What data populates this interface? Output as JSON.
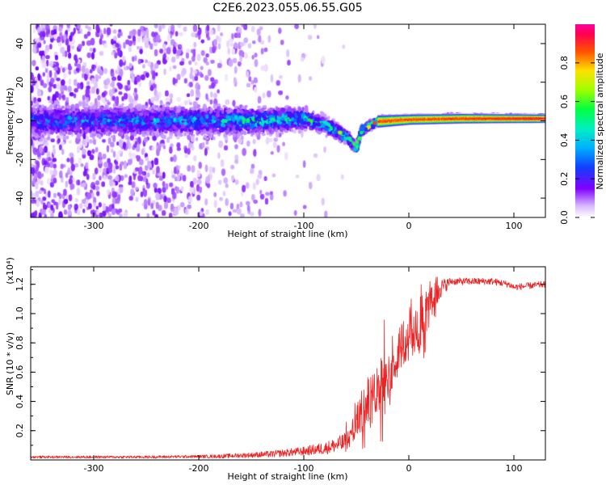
{
  "title": "C2E6.2023.055.06.55.G05",
  "colors": {
    "trace": "#ee2222",
    "background": "#ffffff",
    "colormap": [
      "#ffffff",
      "#ecdcfb",
      "#c9a0ff",
      "#9b40ff",
      "#6a00ff",
      "#2020ff",
      "#00a0ff",
      "#00e8d0",
      "#00ff40",
      "#a0ff00",
      "#ffe000",
      "#ff6000",
      "#ff0040",
      "#ff00a0"
    ]
  },
  "chart_data": [
    {
      "type": "heatmap",
      "name": "spectrogram",
      "xlabel": "Height of straight line (km)",
      "ylabel": "Frequency (Hz)",
      "xlim": [
        -360,
        130
      ],
      "ylim": [
        -50,
        50
      ],
      "x_ticks": [
        -300,
        -200,
        -100,
        0,
        100
      ],
      "x_tick_labels": [
        "-300",
        "-200",
        "-100",
        "0",
        "100"
      ],
      "y_ticks": [
        -40,
        -20,
        0,
        20,
        40
      ],
      "y_tick_labels": [
        "-40",
        "-20",
        "0",
        "20",
        "40"
      ],
      "colorbar": {
        "label": "Normalized spectral amplitude",
        "range": [
          0,
          1
        ],
        "ticks": [
          0.0,
          0.2,
          0.4,
          0.6,
          0.8
        ],
        "tick_labels": [
          "0.0",
          "0.2",
          "0.4",
          "0.6",
          "0.8"
        ]
      },
      "ridge_center": [
        {
          "x": -360,
          "f": 0
        },
        {
          "x": -150,
          "f": 0
        },
        {
          "x": -100,
          "f": 1
        },
        {
          "x": -80,
          "f": -2
        },
        {
          "x": -60,
          "f": -8
        },
        {
          "x": -50,
          "f": -14
        },
        {
          "x": -45,
          "f": -5
        },
        {
          "x": -30,
          "f": 0
        },
        {
          "x": 0,
          "f": 1
        },
        {
          "x": 50,
          "f": 1.5
        },
        {
          "x": 130,
          "f": 1.5
        }
      ],
      "ridge_halfwidth": [
        {
          "x": -360,
          "w": 7
        },
        {
          "x": -150,
          "w": 6
        },
        {
          "x": -100,
          "w": 4.5
        },
        {
          "x": -60,
          "w": 3
        },
        {
          "x": -40,
          "w": 2
        },
        {
          "x": 0,
          "w": 1.6
        },
        {
          "x": 130,
          "w": 1.3
        }
      ],
      "peak_amplitude": [
        {
          "x": -360,
          "a": 0.45
        },
        {
          "x": -200,
          "a": 0.5
        },
        {
          "x": -130,
          "a": 0.6
        },
        {
          "x": -80,
          "a": 0.6
        },
        {
          "x": -50,
          "a": 0.7
        },
        {
          "x": -30,
          "a": 0.9
        },
        {
          "x": 10,
          "a": 0.9
        },
        {
          "x": 130,
          "a": 0.95
        }
      ],
      "noise_level": [
        {
          "x": -360,
          "n": 0.25
        },
        {
          "x": -250,
          "n": 0.22
        },
        {
          "x": -180,
          "n": 0.12
        },
        {
          "x": -130,
          "n": 0.05
        },
        {
          "x": -90,
          "n": 0.015
        },
        {
          "x": -60,
          "n": 0
        },
        {
          "x": 130,
          "n": 0
        }
      ]
    },
    {
      "type": "line",
      "name": "snr",
      "xlabel": "Height of straight line (km)",
      "ylabel": "SNR (10 * v/v)",
      "scale_label": "(x10⁴)",
      "xlim": [
        -360,
        130
      ],
      "ylim": [
        0,
        1.32
      ],
      "x_ticks": [
        -300,
        -200,
        -100,
        0,
        100
      ],
      "x_tick_labels": [
        "-300",
        "-200",
        "-100",
        "0",
        "100"
      ],
      "y_ticks": [
        0.2,
        0.4,
        0.6,
        0.8,
        1.0,
        1.2
      ],
      "y_tick_labels": [
        "0.2",
        "0.4",
        "0.6",
        "0.8",
        "1.0",
        "1.2"
      ],
      "series": [
        {
          "name": "SNR",
          "points": [
            {
              "x": -360,
              "y": 0.02
            },
            {
              "x": -250,
              "y": 0.02
            },
            {
              "x": -180,
              "y": 0.025
            },
            {
              "x": -130,
              "y": 0.04
            },
            {
              "x": -100,
              "y": 0.06
            },
            {
              "x": -80,
              "y": 0.08
            },
            {
              "x": -60,
              "y": 0.12
            },
            {
              "x": -50,
              "y": 0.25
            },
            {
              "x": -40,
              "y": 0.38
            },
            {
              "x": -30,
              "y": 0.5
            },
            {
              "x": -20,
              "y": 0.62
            },
            {
              "x": -10,
              "y": 0.75
            },
            {
              "x": 0,
              "y": 0.85
            },
            {
              "x": 10,
              "y": 0.95
            },
            {
              "x": 20,
              "y": 1.05
            },
            {
              "x": 30,
              "y": 1.17
            },
            {
              "x": 40,
              "y": 1.22
            },
            {
              "x": 80,
              "y": 1.22
            },
            {
              "x": 95,
              "y": 1.2
            },
            {
              "x": 100,
              "y": 1.18
            },
            {
              "x": 130,
              "y": 1.2
            }
          ],
          "noise": [
            {
              "x": -360,
              "n": 0.008
            },
            {
              "x": -200,
              "n": 0.01
            },
            {
              "x": -150,
              "n": 0.018
            },
            {
              "x": -100,
              "n": 0.03
            },
            {
              "x": -70,
              "n": 0.05
            },
            {
              "x": -55,
              "n": 0.08
            },
            {
              "x": -45,
              "n": 0.16
            },
            {
              "x": -20,
              "n": 0.2
            },
            {
              "x": 10,
              "n": 0.2
            },
            {
              "x": 30,
              "n": 0.07
            },
            {
              "x": 40,
              "n": 0.025
            },
            {
              "x": 130,
              "n": 0.022
            }
          ]
        }
      ]
    }
  ]
}
